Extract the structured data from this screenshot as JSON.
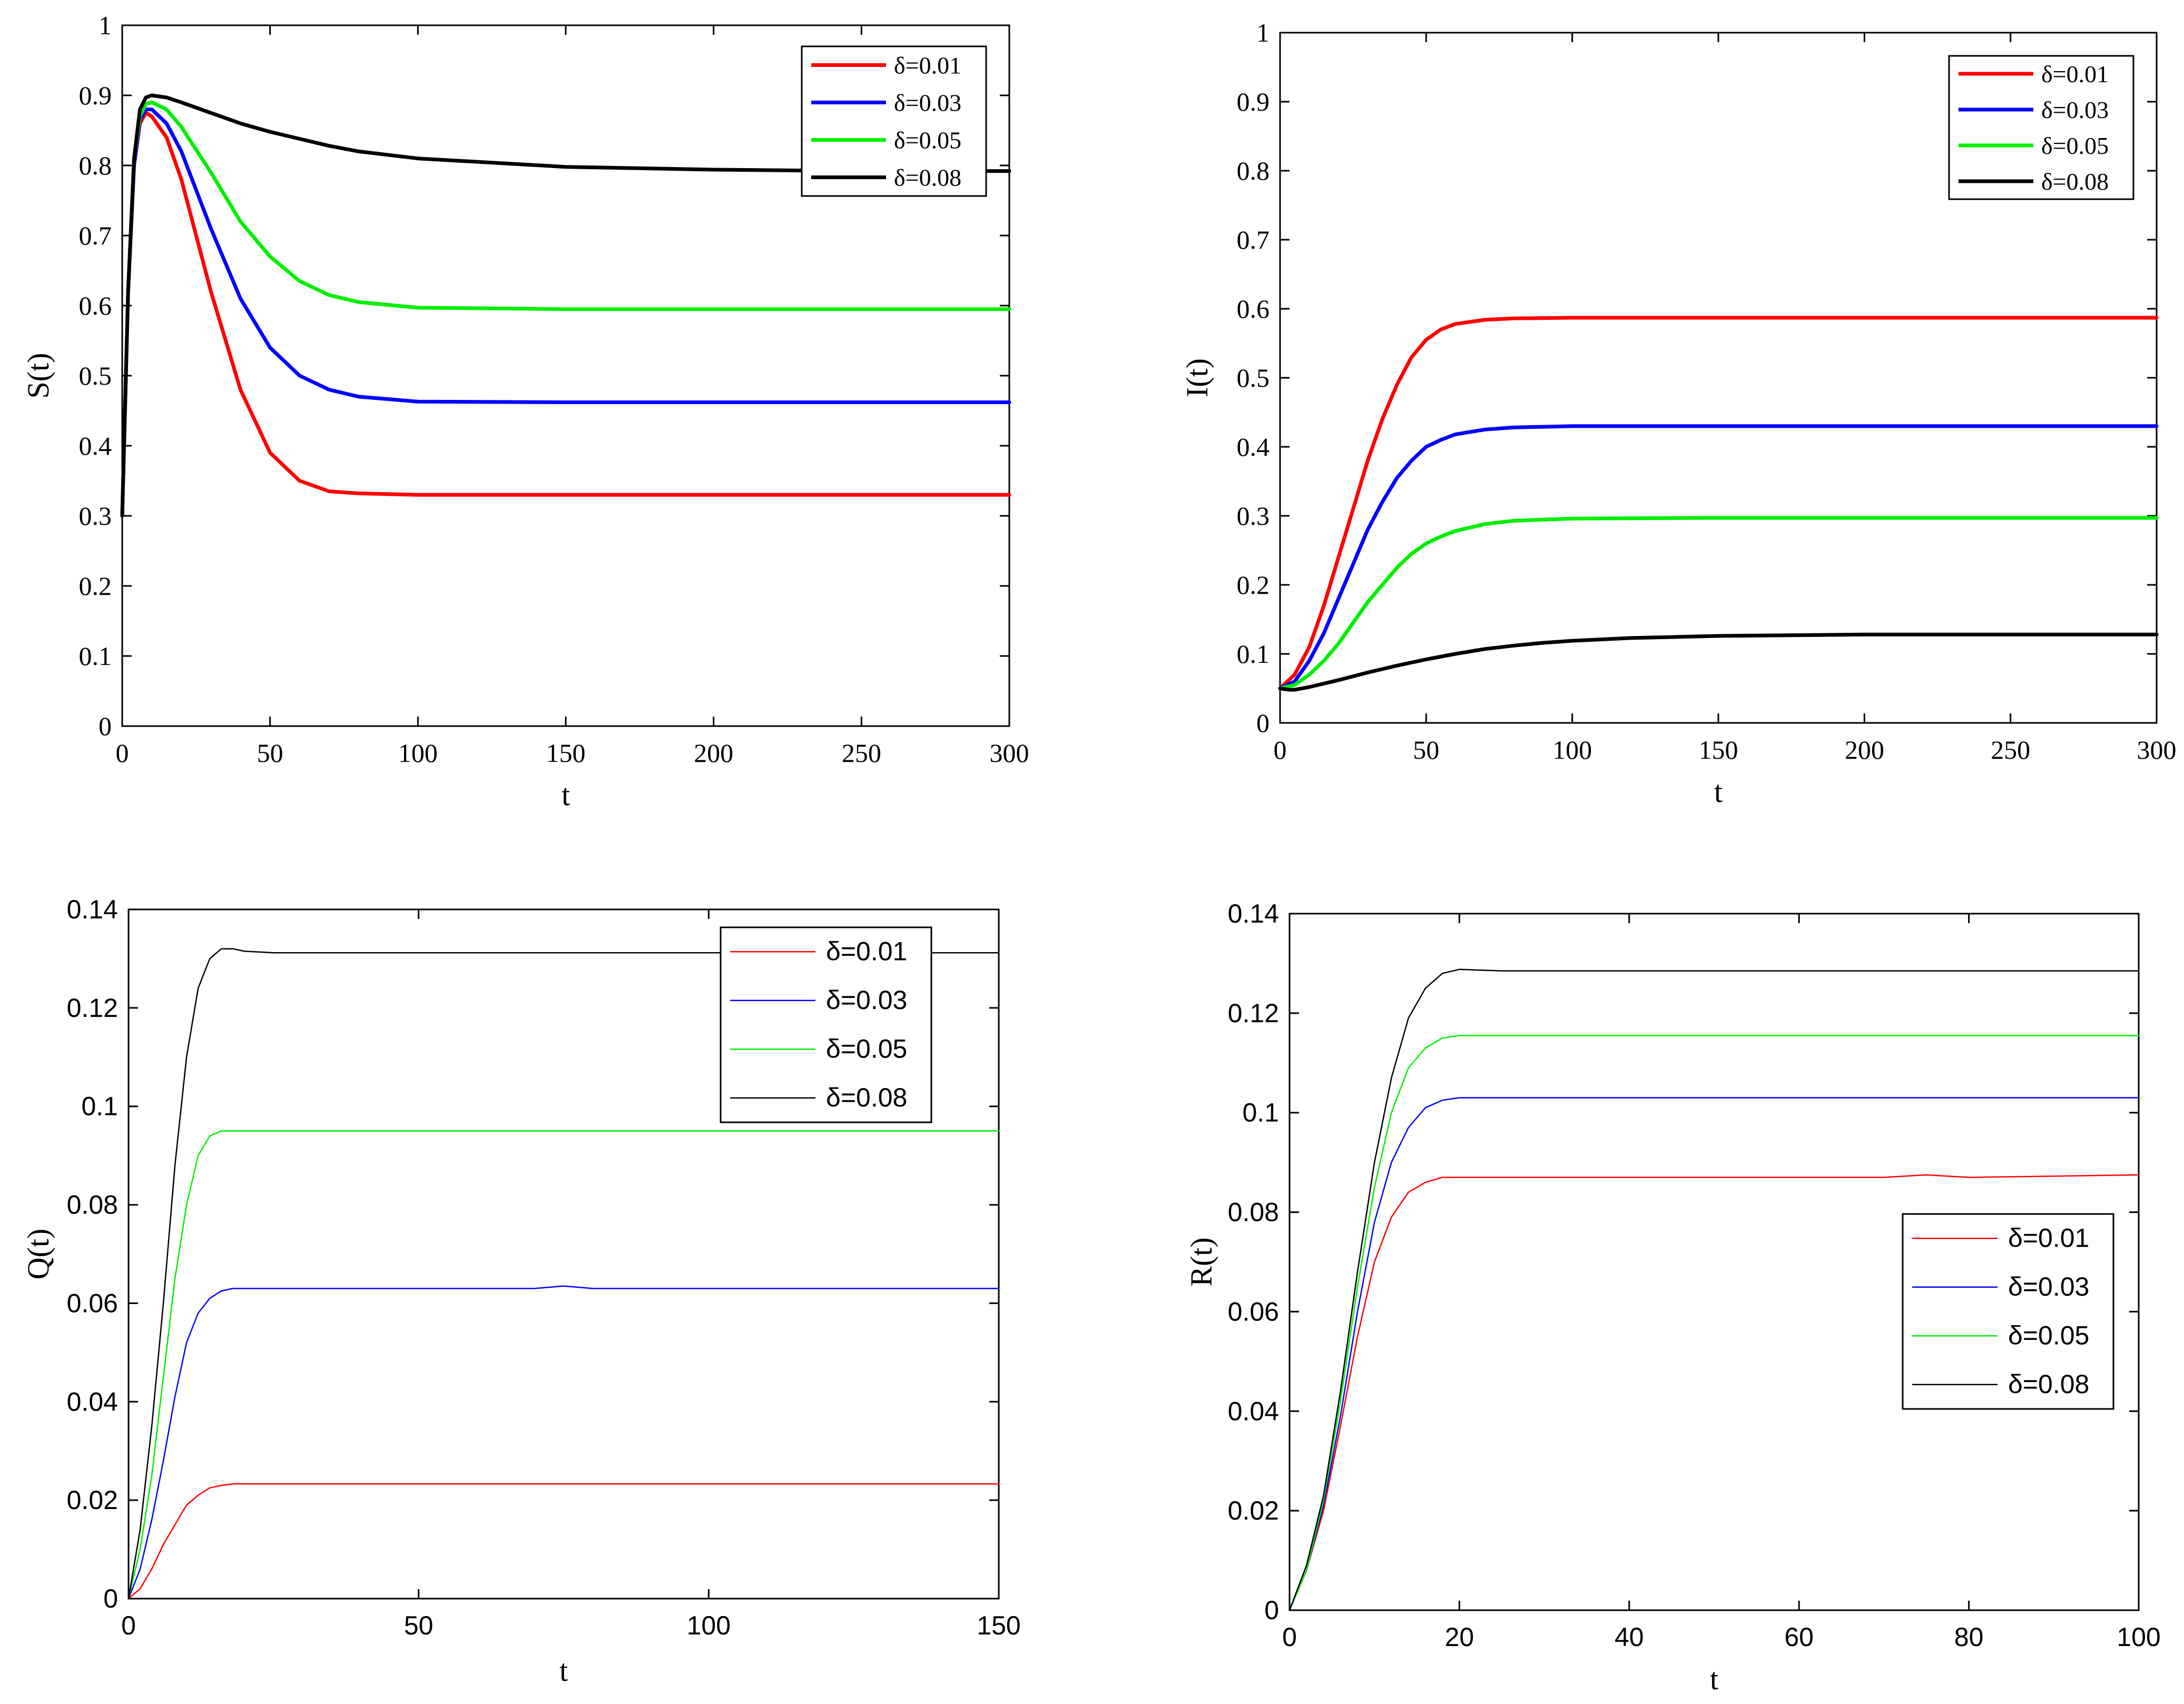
{
  "chart_data": [
    {
      "type": "line",
      "panel": "top-left",
      "xlabel": "t",
      "ylabel": "S(t)",
      "xlim": [
        0,
        300
      ],
      "ylim": [
        0,
        1
      ],
      "xticks": [
        0,
        50,
        100,
        150,
        200,
        250,
        300
      ],
      "yticks": [
        0,
        0.1,
        0.2,
        0.3,
        0.4,
        0.5,
        0.6,
        0.7,
        0.8,
        0.9,
        1
      ],
      "xtick_labels": [
        "0",
        "50",
        "100",
        "150",
        "200",
        "250",
        "300"
      ],
      "ytick_labels": [
        "0",
        "0.1",
        "0.2",
        "0.3",
        "0.4",
        "0.5",
        "0.6",
        "0.7",
        "0.8",
        "0.9",
        "1"
      ],
      "legend_position": "top-right",
      "series": [
        {
          "name": "δ=0.01",
          "color": "#ff0000",
          "x": [
            0,
            2,
            4,
            6,
            8,
            10,
            15,
            20,
            30,
            40,
            50,
            60,
            70,
            80,
            100,
            150,
            200,
            250,
            300
          ],
          "y": [
            0.3,
            0.62,
            0.8,
            0.86,
            0.875,
            0.87,
            0.84,
            0.78,
            0.62,
            0.48,
            0.39,
            0.35,
            0.335,
            0.332,
            0.33,
            0.33,
            0.33,
            0.33,
            0.33
          ]
        },
        {
          "name": "δ=0.03",
          "color": "#0000ff",
          "x": [
            0,
            2,
            4,
            6,
            8,
            10,
            15,
            20,
            30,
            40,
            50,
            60,
            70,
            80,
            100,
            150,
            200,
            250,
            300
          ],
          "y": [
            0.3,
            0.62,
            0.8,
            0.865,
            0.88,
            0.88,
            0.86,
            0.82,
            0.71,
            0.61,
            0.54,
            0.5,
            0.48,
            0.47,
            0.463,
            0.462,
            0.462,
            0.462,
            0.462
          ]
        },
        {
          "name": "δ=0.05",
          "color": "#00ee00",
          "x": [
            0,
            2,
            4,
            6,
            8,
            10,
            15,
            20,
            30,
            40,
            50,
            60,
            70,
            80,
            100,
            150,
            200,
            250,
            300
          ],
          "y": [
            0.3,
            0.62,
            0.81,
            0.87,
            0.888,
            0.89,
            0.88,
            0.855,
            0.79,
            0.72,
            0.67,
            0.635,
            0.615,
            0.605,
            0.597,
            0.595,
            0.595,
            0.595,
            0.595
          ]
        },
        {
          "name": "δ=0.08",
          "color": "#000000",
          "x": [
            0,
            2,
            4,
            6,
            8,
            10,
            15,
            20,
            30,
            40,
            50,
            60,
            70,
            80,
            100,
            150,
            200,
            250,
            300
          ],
          "y": [
            0.3,
            0.62,
            0.81,
            0.88,
            0.897,
            0.9,
            0.897,
            0.89,
            0.875,
            0.86,
            0.848,
            0.838,
            0.828,
            0.82,
            0.81,
            0.798,
            0.794,
            0.792,
            0.792
          ]
        }
      ]
    },
    {
      "type": "line",
      "panel": "top-right",
      "xlabel": "t",
      "ylabel": "I(t)",
      "xlim": [
        0,
        300
      ],
      "ylim": [
        0,
        1
      ],
      "xticks": [
        0,
        50,
        100,
        150,
        200,
        250,
        300
      ],
      "yticks": [
        0,
        0.1,
        0.2,
        0.3,
        0.4,
        0.5,
        0.6,
        0.7,
        0.8,
        0.9,
        1
      ],
      "xtick_labels": [
        "0",
        "50",
        "100",
        "150",
        "200",
        "250",
        "300"
      ],
      "ytick_labels": [
        "0",
        "0.1",
        "0.2",
        "0.3",
        "0.4",
        "0.5",
        "0.6",
        "0.7",
        "0.8",
        "0.9",
        "1"
      ],
      "legend_position": "top-right",
      "series": [
        {
          "name": "δ=0.01",
          "color": "#ff0000",
          "x": [
            0,
            5,
            10,
            15,
            20,
            25,
            30,
            35,
            40,
            45,
            50,
            55,
            60,
            70,
            80,
            100,
            150,
            200,
            300
          ],
          "y": [
            0.05,
            0.07,
            0.11,
            0.17,
            0.24,
            0.31,
            0.38,
            0.44,
            0.49,
            0.53,
            0.555,
            0.57,
            0.578,
            0.584,
            0.586,
            0.587,
            0.587,
            0.587,
            0.587
          ]
        },
        {
          "name": "δ=0.03",
          "color": "#0000ff",
          "x": [
            0,
            5,
            10,
            15,
            20,
            25,
            30,
            35,
            40,
            45,
            50,
            55,
            60,
            70,
            80,
            100,
            150,
            200,
            300
          ],
          "y": [
            0.05,
            0.06,
            0.09,
            0.13,
            0.18,
            0.23,
            0.28,
            0.32,
            0.355,
            0.38,
            0.4,
            0.41,
            0.418,
            0.425,
            0.428,
            0.43,
            0.43,
            0.43,
            0.43
          ]
        },
        {
          "name": "δ=0.05",
          "color": "#00ee00",
          "x": [
            0,
            5,
            10,
            15,
            20,
            25,
            30,
            35,
            40,
            45,
            50,
            55,
            60,
            70,
            80,
            100,
            150,
            200,
            300
          ],
          "y": [
            0.05,
            0.055,
            0.07,
            0.09,
            0.115,
            0.145,
            0.175,
            0.2,
            0.225,
            0.245,
            0.26,
            0.27,
            0.278,
            0.288,
            0.293,
            0.296,
            0.297,
            0.297,
            0.297
          ]
        },
        {
          "name": "δ=0.08",
          "color": "#000000",
          "x": [
            0,
            3,
            5,
            10,
            20,
            30,
            40,
            50,
            60,
            70,
            80,
            90,
            100,
            120,
            150,
            200,
            250,
            300
          ],
          "y": [
            0.05,
            0.048,
            0.048,
            0.052,
            0.062,
            0.073,
            0.083,
            0.092,
            0.1,
            0.107,
            0.112,
            0.116,
            0.119,
            0.123,
            0.126,
            0.128,
            0.128,
            0.128
          ]
        }
      ]
    },
    {
      "type": "line",
      "panel": "bottom-left",
      "xlabel": "t",
      "ylabel": "Q(t)",
      "xlim": [
        0,
        150
      ],
      "ylim": [
        0,
        0.14
      ],
      "xticks": [
        0,
        50,
        100,
        150
      ],
      "yticks": [
        0,
        0.02,
        0.04,
        0.06,
        0.08,
        0.1,
        0.12,
        0.14
      ],
      "xtick_labels": [
        "0",
        "50",
        "100",
        "150"
      ],
      "ytick_labels": [
        "0",
        "0.02",
        "0.04",
        "0.06",
        "0.08",
        "0.1",
        "0.12",
        "0.14"
      ],
      "legend_position": "top-right",
      "series": [
        {
          "name": "δ=0.01",
          "color": "#ff0000",
          "x": [
            0,
            2,
            4,
            6,
            8,
            10,
            12,
            14,
            16,
            18,
            20,
            25,
            150
          ],
          "y": [
            0,
            0.002,
            0.006,
            0.011,
            0.015,
            0.019,
            0.021,
            0.0225,
            0.023,
            0.0233,
            0.0233,
            0.0233,
            0.0233
          ]
        },
        {
          "name": "δ=0.03",
          "color": "#0000ff",
          "x": [
            0,
            2,
            4,
            6,
            8,
            10,
            12,
            14,
            16,
            18,
            20,
            25,
            70,
            75,
            80,
            150
          ],
          "y": [
            0,
            0.006,
            0.016,
            0.028,
            0.041,
            0.052,
            0.058,
            0.061,
            0.0625,
            0.063,
            0.063,
            0.063,
            0.063,
            0.0635,
            0.063,
            0.063
          ]
        },
        {
          "name": "δ=0.05",
          "color": "#00ee00",
          "x": [
            0,
            2,
            4,
            6,
            8,
            10,
            12,
            14,
            16,
            18,
            20,
            25,
            150
          ],
          "y": [
            0,
            0.01,
            0.025,
            0.045,
            0.065,
            0.08,
            0.09,
            0.094,
            0.095,
            0.095,
            0.095,
            0.095,
            0.095
          ]
        },
        {
          "name": "δ=0.08",
          "color": "#000000",
          "x": [
            0,
            2,
            4,
            6,
            8,
            10,
            12,
            14,
            16,
            18,
            20,
            25,
            150
          ],
          "y": [
            0,
            0.014,
            0.035,
            0.06,
            0.088,
            0.11,
            0.124,
            0.13,
            0.132,
            0.132,
            0.1315,
            0.1312,
            0.1312
          ]
        }
      ]
    },
    {
      "type": "line",
      "panel": "bottom-right",
      "xlabel": "t",
      "ylabel": "R(t)",
      "xlim": [
        0,
        100
      ],
      "ylim": [
        0,
        0.14
      ],
      "xticks": [
        0,
        20,
        40,
        60,
        80,
        100
      ],
      "yticks": [
        0,
        0.02,
        0.04,
        0.06,
        0.08,
        0.1,
        0.12,
        0.14
      ],
      "xtick_labels": [
        "0",
        "20",
        "40",
        "60",
        "80",
        "100"
      ],
      "ytick_labels": [
        "0",
        "0.02",
        "0.04",
        "0.06",
        "0.08",
        "0.1",
        "0.12",
        "0.14"
      ],
      "legend_position": "middle-right",
      "series": [
        {
          "name": "δ=0.01",
          "color": "#ff0000",
          "x": [
            0,
            2,
            4,
            6,
            8,
            10,
            12,
            14,
            16,
            18,
            20,
            25,
            70,
            75,
            80,
            100
          ],
          "y": [
            0,
            0.008,
            0.02,
            0.037,
            0.055,
            0.07,
            0.079,
            0.084,
            0.086,
            0.087,
            0.087,
            0.087,
            0.087,
            0.0875,
            0.087,
            0.0875
          ]
        },
        {
          "name": "δ=0.03",
          "color": "#0000ff",
          "x": [
            0,
            2,
            4,
            6,
            8,
            10,
            12,
            14,
            16,
            18,
            20,
            25,
            100
          ],
          "y": [
            0,
            0.008,
            0.021,
            0.039,
            0.06,
            0.078,
            0.09,
            0.097,
            0.101,
            0.1025,
            0.103,
            0.103,
            0.103
          ]
        },
        {
          "name": "δ=0.05",
          "color": "#00ee00",
          "x": [
            0,
            2,
            4,
            6,
            8,
            10,
            12,
            14,
            16,
            18,
            20,
            25,
            100
          ],
          "y": [
            0,
            0.008,
            0.022,
            0.042,
            0.065,
            0.085,
            0.1,
            0.109,
            0.113,
            0.115,
            0.1155,
            0.1155,
            0.1155
          ]
        },
        {
          "name": "δ=0.08",
          "color": "#000000",
          "x": [
            0,
            2,
            4,
            6,
            8,
            10,
            12,
            14,
            16,
            18,
            20,
            25,
            100
          ],
          "y": [
            0,
            0.009,
            0.023,
            0.044,
            0.068,
            0.09,
            0.107,
            0.119,
            0.125,
            0.128,
            0.1288,
            0.1285,
            0.1285
          ]
        }
      ]
    }
  ]
}
